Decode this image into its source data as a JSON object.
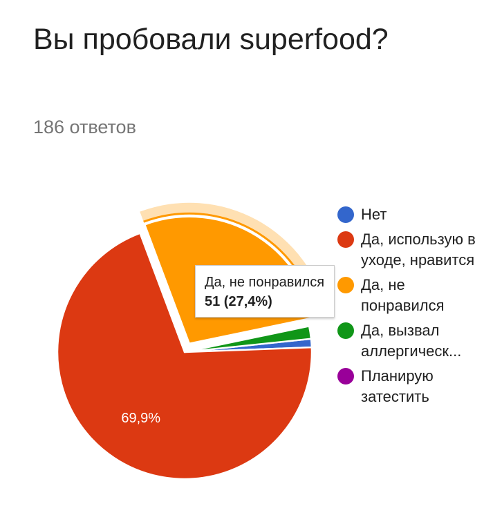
{
  "header": {
    "title": "Вы пробовали superfood?",
    "responses": "186 ответов"
  },
  "chart_data": {
    "type": "pie",
    "title": "Вы пробовали superfood?",
    "total": 186,
    "start_angle_deg": -6,
    "slices": [
      {
        "label": "Нет",
        "value": 2,
        "percent": "1,1%",
        "color": "#3366cc"
      },
      {
        "label": "Да, использую в уходе, нравится",
        "value": 130,
        "percent": "69,9%",
        "color": "#dc3912",
        "show_label": true
      },
      {
        "label": "Да, не понравился",
        "value": 51,
        "percent": "27,4%",
        "color": "#ff9900",
        "highlighted": true
      },
      {
        "label": "Да, вызвал аллергическ...",
        "value": 3,
        "percent": "1,6%",
        "color": "#109618"
      },
      {
        "label": "Планирую затестить",
        "value": 0,
        "percent": "0%",
        "color": "#990099"
      }
    ],
    "legend_position": "right"
  },
  "legend": {
    "items": [
      {
        "label": "Нет",
        "color": "#3366cc"
      },
      {
        "label": "Да, использую в уходе, нравится",
        "color": "#dc3912"
      },
      {
        "label": "Да, не понравился",
        "color": "#ff9900"
      },
      {
        "label": "Да, вызвал аллергическ...",
        "color": "#109618"
      },
      {
        "label": "Планирую затестить",
        "color": "#990099"
      }
    ]
  },
  "tooltip": {
    "label": "Да, не понравился",
    "value": "51 (27,4%)"
  },
  "colors": {
    "highlight_ring": "#ffe0b2",
    "highlight_ring_inner": "#ff9900"
  }
}
